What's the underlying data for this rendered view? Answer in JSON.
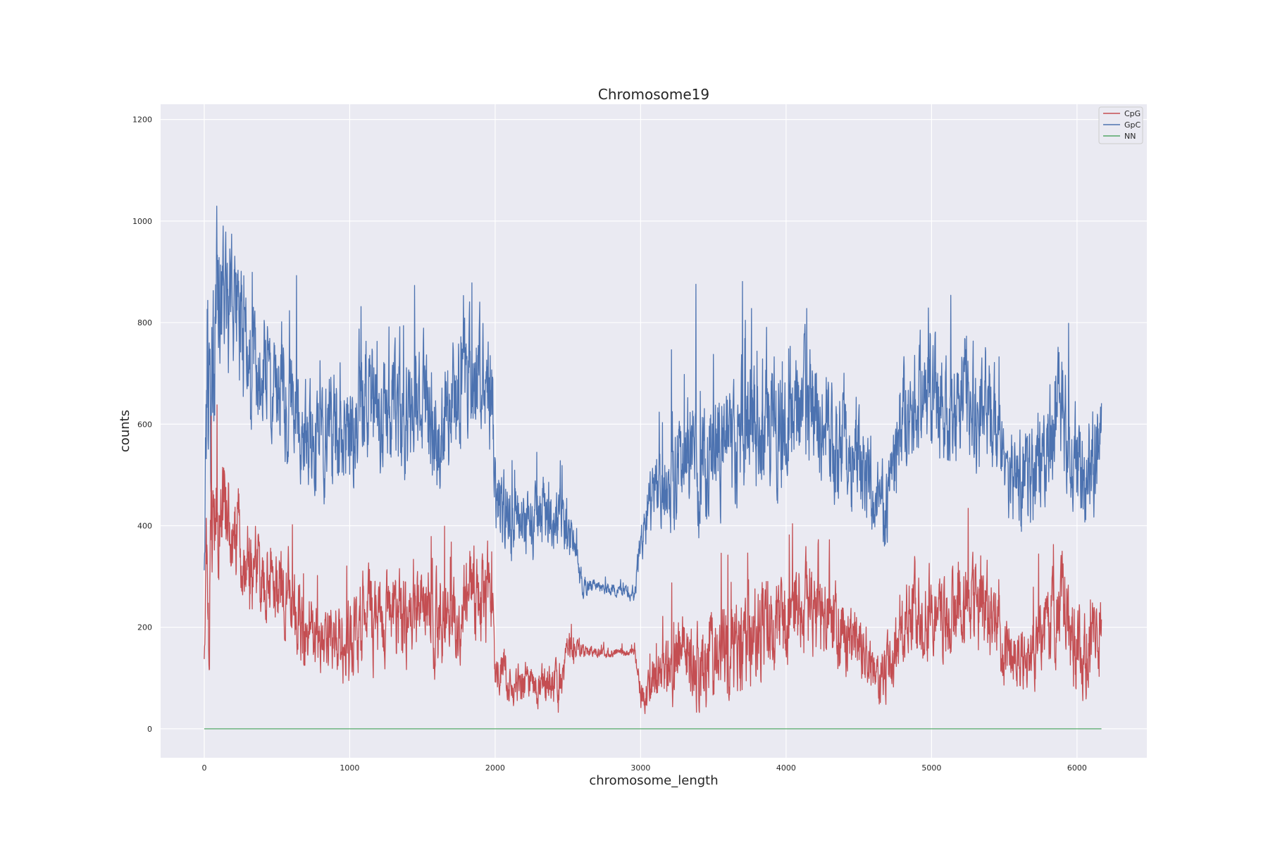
{
  "chart_data": {
    "type": "line",
    "title": "Chromosome19",
    "xlabel": "chromosome_length",
    "ylabel": "counts",
    "xlim": [
      -300,
      6480
    ],
    "ylim": [
      -57,
      1230
    ],
    "xticks": [
      0,
      1000,
      2000,
      3000,
      4000,
      5000,
      6000
    ],
    "yticks": [
      0,
      200,
      400,
      600,
      800,
      1000,
      1200
    ],
    "grid": true,
    "legend_position": "top-right",
    "n_points": 6170,
    "series": [
      {
        "name": "CpG",
        "color": "#c44e52",
        "profile_x": [
          0,
          20,
          40,
          60,
          100,
          150,
          200,
          300,
          400,
          500,
          600,
          700,
          800,
          900,
          1000,
          1100,
          1200,
          1300,
          1400,
          1500,
          1600,
          1700,
          1800,
          1900,
          1980,
          2000,
          2100,
          2200,
          2300,
          2400,
          2450,
          2500,
          2550,
          2600,
          2700,
          2800,
          2900,
          2960,
          3000,
          3050,
          3100,
          3200,
          3300,
          3400,
          3500,
          3600,
          3700,
          3800,
          3900,
          4000,
          4100,
          4200,
          4300,
          4400,
          4500,
          4600,
          4700,
          4800,
          4900,
          5000,
          5100,
          5200,
          5300,
          5400,
          5500,
          5600,
          5700,
          5800,
          5900,
          6000,
          6100,
          6170
        ],
        "profile_y": [
          130,
          350,
          250,
          380,
          420,
          440,
          400,
          330,
          300,
          280,
          260,
          190,
          180,
          200,
          160,
          250,
          190,
          230,
          200,
          250,
          200,
          240,
          260,
          260,
          250,
          140,
          95,
          85,
          90,
          85,
          85,
          160,
          160,
          150,
          150,
          150,
          150,
          150,
          65,
          75,
          100,
          110,
          150,
          130,
          160,
          150,
          170,
          200,
          220,
          190,
          240,
          230,
          200,
          190,
          180,
          110,
          110,
          210,
          230,
          240,
          210,
          250,
          240,
          230,
          150,
          140,
          160,
          200,
          250,
          150,
          160,
          160
        ],
        "noise": [
          20,
          150,
          200,
          130,
          130,
          110,
          100,
          100,
          100,
          90,
          100,
          90,
          90,
          100,
          100,
          110,
          100,
          110,
          110,
          100,
          110,
          110,
          110,
          110,
          110,
          60,
          50,
          50,
          50,
          50,
          50,
          40,
          30,
          20,
          12,
          10,
          10,
          10,
          40,
          50,
          60,
          80,
          90,
          100,
          110,
          110,
          110,
          120,
          120,
          110,
          110,
          110,
          100,
          90,
          80,
          70,
          70,
          100,
          100,
          110,
          100,
          100,
          110,
          110,
          90,
          80,
          90,
          110,
          110,
          110,
          100,
          100
        ]
      },
      {
        "name": "GpC",
        "color": "#4c72b0",
        "profile_x": [
          0,
          20,
          40,
          60,
          100,
          150,
          200,
          300,
          400,
          500,
          600,
          700,
          800,
          900,
          1000,
          1100,
          1200,
          1300,
          1400,
          1500,
          1600,
          1700,
          1800,
          1900,
          1980,
          2000,
          2100,
          2200,
          2300,
          2400,
          2450,
          2500,
          2550,
          2600,
          2700,
          2800,
          2900,
          2960,
          3000,
          3050,
          3100,
          3200,
          3300,
          3400,
          3500,
          3600,
          3700,
          3800,
          3900,
          4000,
          4100,
          4200,
          4300,
          4400,
          4500,
          4600,
          4700,
          4800,
          4900,
          5000,
          5100,
          5200,
          5300,
          5400,
          5500,
          5600,
          5700,
          5800,
          5900,
          6000,
          6100,
          6170
        ],
        "profile_y": [
          350,
          720,
          600,
          780,
          860,
          860,
          820,
          760,
          720,
          680,
          640,
          560,
          560,
          590,
          560,
          680,
          600,
          640,
          600,
          660,
          580,
          640,
          680,
          700,
          660,
          460,
          400,
          400,
          430,
          430,
          420,
          380,
          380,
          280,
          280,
          275,
          270,
          260,
          380,
          420,
          460,
          500,
          560,
          520,
          560,
          540,
          580,
          600,
          620,
          560,
          640,
          630,
          580,
          550,
          540,
          430,
          430,
          600,
          640,
          660,
          600,
          660,
          640,
          640,
          490,
          480,
          500,
          580,
          640,
          500,
          520,
          580
        ],
        "noise": [
          60,
          250,
          280,
          230,
          200,
          170,
          160,
          150,
          140,
          140,
          140,
          130,
          130,
          140,
          130,
          130,
          130,
          140,
          140,
          140,
          140,
          140,
          140,
          140,
          140,
          100,
          80,
          90,
          90,
          90,
          80,
          60,
          40,
          25,
          15,
          15,
          15,
          15,
          60,
          80,
          90,
          120,
          140,
          150,
          150,
          150,
          150,
          150,
          150,
          140,
          140,
          140,
          130,
          130,
          120,
          100,
          110,
          140,
          140,
          140,
          130,
          140,
          140,
          140,
          110,
          110,
          120,
          130,
          140,
          130,
          130,
          140
        ]
      },
      {
        "name": "NN",
        "color": "#55a868",
        "profile_x": [
          0,
          6170
        ],
        "profile_y": [
          0,
          0
        ],
        "noise": [
          0,
          0
        ]
      }
    ]
  }
}
